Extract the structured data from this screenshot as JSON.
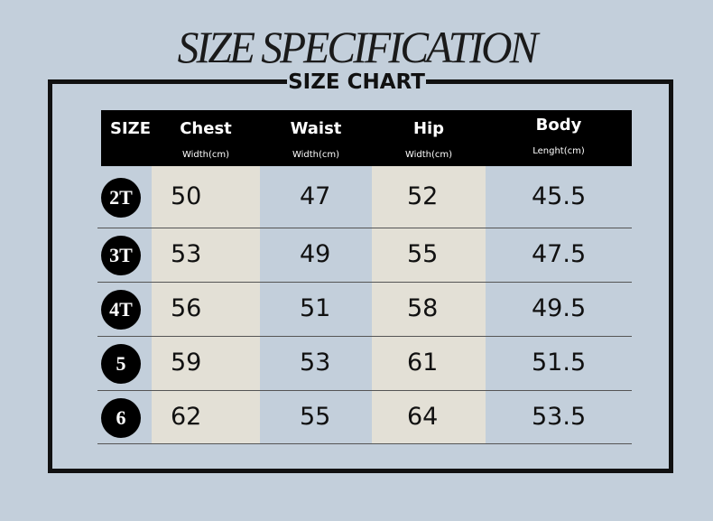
{
  "title": "SIZE SPECIFICATION",
  "subtitle": "SIZE CHART",
  "table": {
    "header": [
      {
        "label": "SIZE"
      },
      {
        "label": "Chest",
        "unit": "Width(cm)"
      },
      {
        "label": "Waist",
        "unit": "Width(cm)"
      },
      {
        "label": "Hip",
        "unit": "Width(cm)"
      },
      {
        "label": "Body",
        "unit": "Lenght(cm)"
      }
    ],
    "rows": [
      [
        "2T",
        50,
        47,
        52,
        45.5
      ],
      [
        "3T",
        53,
        49,
        55,
        47.5
      ],
      [
        "4T",
        56,
        51,
        58,
        49.5
      ],
      [
        "5",
        59,
        53,
        61,
        51.5
      ],
      [
        "6",
        62,
        55,
        64,
        53.5
      ]
    ]
  }
}
